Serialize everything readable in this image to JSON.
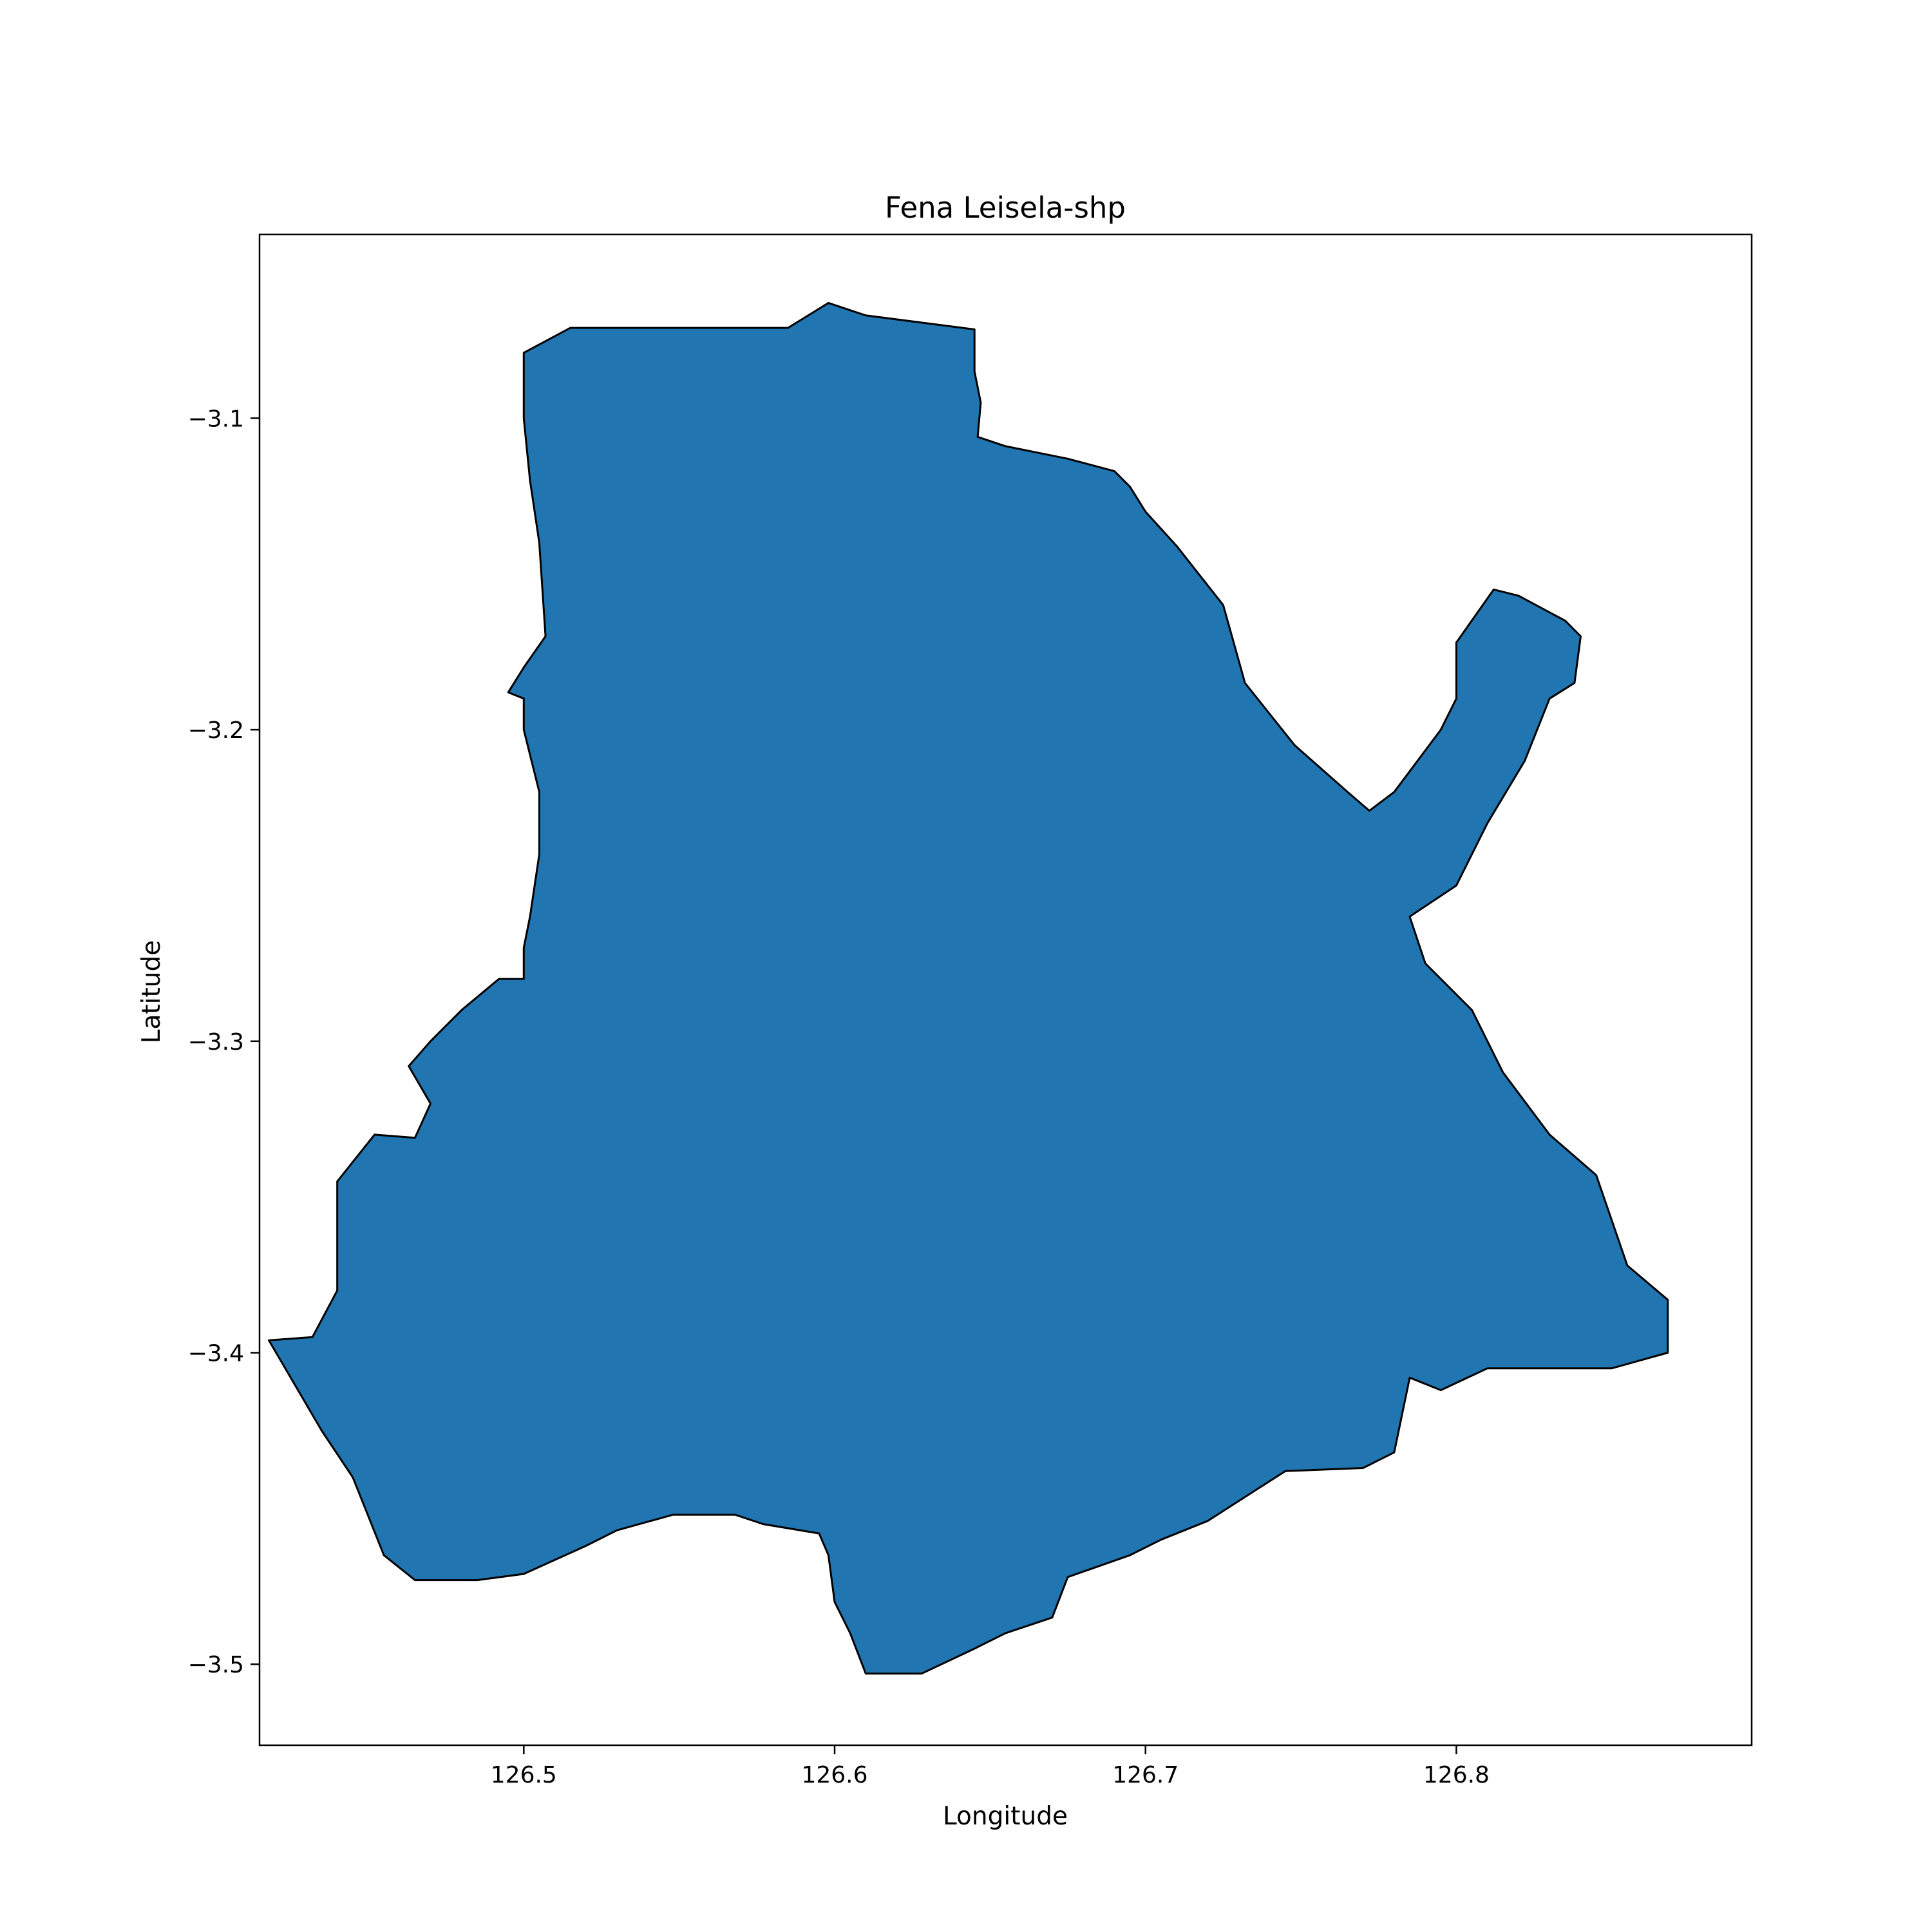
{
  "title": "Fena Leisela-shp",
  "xlabel": "Longitude",
  "ylabel": "Latitude",
  "fill_color": "#2176b2",
  "edge_color": "#000000",
  "x_ticks": [
    {
      "value": 126.5,
      "label": "126.5"
    },
    {
      "value": 126.6,
      "label": "126.6"
    },
    {
      "value": 126.7,
      "label": "126.7"
    },
    {
      "value": 126.8,
      "label": "126.8"
    }
  ],
  "y_ticks": [
    {
      "value": -3.1,
      "label": "−3.1"
    },
    {
      "value": -3.2,
      "label": "−3.2"
    },
    {
      "value": -3.3,
      "label": "−3.3"
    },
    {
      "value": -3.4,
      "label": "−3.4"
    },
    {
      "value": -3.5,
      "label": "−3.5"
    }
  ],
  "xlim": [
    126.415,
    126.895
  ],
  "ylim": [
    -3.526,
    -3.041
  ],
  "chart_data": {
    "type": "map",
    "title": "Fena Leisela-shp",
    "xlabel": "Longitude",
    "ylabel": "Latitude",
    "grid": false,
    "xlim": [
      126.415,
      126.895
    ],
    "ylim": [
      -3.526,
      -3.041
    ],
    "regions": [
      {
        "fill": "#2176b2",
        "boundary": [
          [
            126.5,
            -3.079
          ],
          [
            126.515,
            -3.071
          ],
          [
            126.555,
            -3.071
          ],
          [
            126.585,
            -3.071
          ],
          [
            126.598,
            -3.063
          ],
          [
            126.61,
            -3.067
          ],
          [
            126.645,
            -3.0715
          ],
          [
            126.645,
            -3.085
          ],
          [
            126.647,
            -3.095
          ],
          [
            126.646,
            -3.106
          ],
          [
            126.655,
            -3.109
          ],
          [
            126.675,
            -3.113
          ],
          [
            126.69,
            -3.117
          ],
          [
            126.695,
            -3.122
          ],
          [
            126.7,
            -3.13
          ],
          [
            126.71,
            -3.141
          ],
          [
            126.725,
            -3.16
          ],
          [
            126.732,
            -3.185
          ],
          [
            126.748,
            -3.205
          ],
          [
            126.765,
            -3.22
          ],
          [
            126.772,
            -3.226
          ],
          [
            126.78,
            -3.22
          ],
          [
            126.795,
            -3.2
          ],
          [
            126.8,
            -3.19
          ],
          [
            126.8,
            -3.172
          ],
          [
            126.812,
            -3.155
          ],
          [
            126.82,
            -3.157
          ],
          [
            126.835,
            -3.165
          ],
          [
            126.84,
            -3.17
          ],
          [
            126.838,
            -3.185
          ],
          [
            126.83,
            -3.19
          ],
          [
            126.822,
            -3.21
          ],
          [
            126.81,
            -3.23
          ],
          [
            126.8,
            -3.25
          ],
          [
            126.785,
            -3.26
          ],
          [
            126.79,
            -3.275
          ],
          [
            126.805,
            -3.29
          ],
          [
            126.815,
            -3.31
          ],
          [
            126.83,
            -3.33
          ],
          [
            126.845,
            -3.343
          ],
          [
            126.855,
            -3.372
          ],
          [
            126.868,
            -3.383
          ],
          [
            126.868,
            -3.4
          ],
          [
            126.85,
            -3.405
          ],
          [
            126.81,
            -3.405
          ],
          [
            126.795,
            -3.412
          ],
          [
            126.785,
            -3.408
          ],
          [
            126.78,
            -3.432
          ],
          [
            126.77,
            -3.437
          ],
          [
            126.745,
            -3.438
          ],
          [
            126.72,
            -3.454
          ],
          [
            126.705,
            -3.46
          ],
          [
            126.695,
            -3.465
          ],
          [
            126.675,
            -3.472
          ],
          [
            126.67,
            -3.485
          ],
          [
            126.655,
            -3.49
          ],
          [
            126.645,
            -3.495
          ],
          [
            126.628,
            -3.503
          ],
          [
            126.61,
            -3.503
          ],
          [
            126.605,
            -3.49
          ],
          [
            126.6,
            -3.48
          ],
          [
            126.598,
            -3.465
          ],
          [
            126.595,
            -3.458
          ],
          [
            126.577,
            -3.455
          ],
          [
            126.568,
            -3.452
          ],
          [
            126.548,
            -3.452
          ],
          [
            126.53,
            -3.457
          ],
          [
            126.52,
            -3.462
          ],
          [
            126.5,
            -3.471
          ],
          [
            126.485,
            -3.473
          ],
          [
            126.465,
            -3.473
          ],
          [
            126.455,
            -3.465
          ],
          [
            126.445,
            -3.44
          ],
          [
            126.435,
            -3.425
          ],
          [
            126.418,
            -3.396
          ],
          [
            126.432,
            -3.395
          ],
          [
            126.44,
            -3.38
          ],
          [
            126.44,
            -3.36
          ],
          [
            126.44,
            -3.345
          ],
          [
            126.452,
            -3.33
          ],
          [
            126.465,
            -3.331
          ],
          [
            126.47,
            -3.32
          ],
          [
            126.463,
            -3.308
          ],
          [
            126.47,
            -3.3
          ],
          [
            126.48,
            -3.29
          ],
          [
            126.492,
            -3.28
          ],
          [
            126.5,
            -3.28
          ],
          [
            126.5,
            -3.27
          ],
          [
            126.502,
            -3.26
          ],
          [
            126.505,
            -3.24
          ],
          [
            126.505,
            -3.22
          ],
          [
            126.5,
            -3.2
          ],
          [
            126.5,
            -3.19
          ],
          [
            126.495,
            -3.188
          ],
          [
            126.5,
            -3.18
          ],
          [
            126.507,
            -3.17
          ],
          [
            126.505,
            -3.14
          ],
          [
            126.502,
            -3.12
          ],
          [
            126.5,
            -3.1
          ],
          [
            126.5,
            -3.079
          ]
        ]
      }
    ]
  }
}
